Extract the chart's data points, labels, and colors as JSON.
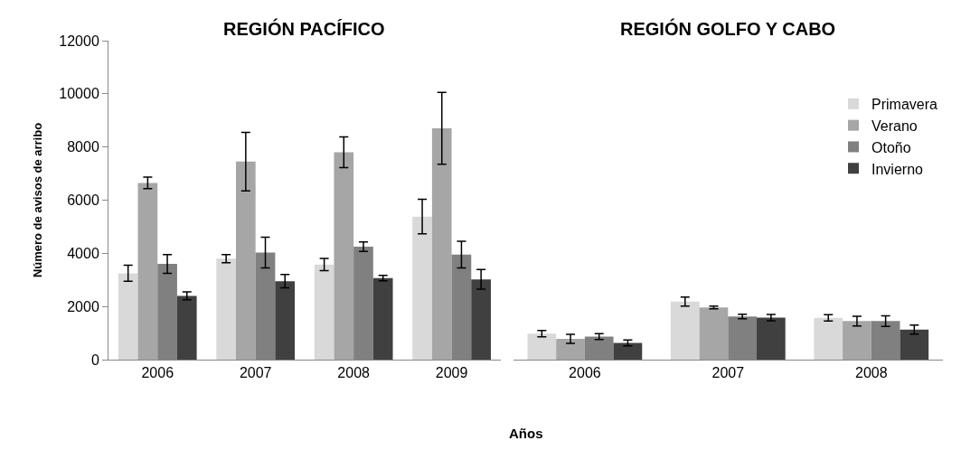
{
  "chart_data": [
    {
      "type": "bar",
      "title": "REGIÓN PACÍFICO",
      "ylabel": "Número de avisos de arribo",
      "xlabel": "Años",
      "categories": [
        "2006",
        "2007",
        "2008",
        "2009"
      ],
      "ylim": [
        0,
        12000
      ],
      "yticks": [
        0,
        2000,
        4000,
        6000,
        8000,
        10000,
        12000
      ],
      "series": [
        {
          "color": "#d9d9d9",
          "values": [
            3250,
            3800,
            3580,
            5380
          ],
          "errors": [
            300,
            150,
            230,
            650
          ]
        },
        {
          "color": "#a6a6a6",
          "values": [
            6650,
            7450,
            7800,
            8700
          ],
          "errors": [
            220,
            1100,
            580,
            1350
          ]
        },
        {
          "color": "#808080",
          "values": [
            3600,
            4030,
            4250,
            3950
          ],
          "errors": [
            350,
            580,
            180,
            500
          ]
        },
        {
          "color": "#404040",
          "values": [
            2400,
            2950,
            3070,
            3020
          ],
          "errors": [
            150,
            250,
            100,
            370
          ]
        }
      ]
    },
    {
      "type": "bar",
      "title": "REGIÓN GOLFO Y CABO",
      "categories": [
        "2006",
        "2007",
        "2008"
      ],
      "ylim": [
        0,
        12000
      ],
      "tick_labels": "x",
      "legend": "top right",
      "series": [
        {
          "name": "Primavera",
          "color": "#d9d9d9",
          "values": [
            980,
            2180,
            1570
          ],
          "errors": [
            120,
            170,
            120
          ]
        },
        {
          "name": "Verano",
          "color": "#a6a6a6",
          "values": [
            780,
            1960,
            1450
          ],
          "errors": [
            170,
            50,
            180
          ]
        },
        {
          "name": "Otoño",
          "color": "#808080",
          "values": [
            870,
            1620,
            1450
          ],
          "errors": [
            110,
            85,
            200
          ]
        },
        {
          "name": "Invierno",
          "color": "#404040",
          "values": [
            630,
            1580,
            1130
          ],
          "errors": [
            110,
            120,
            170
          ]
        }
      ]
    }
  ]
}
